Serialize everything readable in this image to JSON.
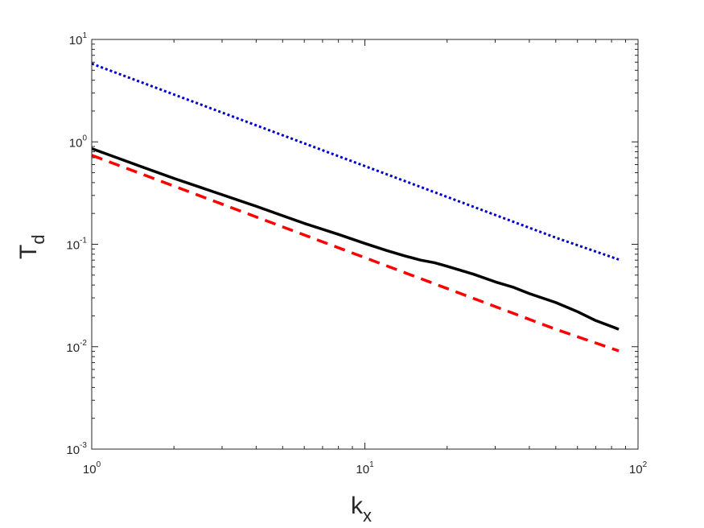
{
  "chart_data": {
    "type": "line",
    "xscale": "log",
    "yscale": "log",
    "xlim": [
      1,
      100
    ],
    "ylim": [
      0.001,
      10
    ],
    "xlabel": {
      "base": "k",
      "sub": "x"
    },
    "ylabel": {
      "base": "T",
      "sub": "d"
    },
    "grid": false,
    "legend": "none",
    "x_ticks": [
      {
        "value": 1,
        "base": "10",
        "exp": "0"
      },
      {
        "value": 10,
        "base": "10",
        "exp": "1"
      },
      {
        "value": 100,
        "base": "10",
        "exp": "2"
      }
    ],
    "y_ticks": [
      {
        "value": 0.001,
        "base": "10",
        "exp": "-3"
      },
      {
        "value": 0.01,
        "base": "10",
        "exp": "-2"
      },
      {
        "value": 0.1,
        "base": "10",
        "exp": "-1"
      },
      {
        "value": 1,
        "base": "10",
        "exp": "0"
      },
      {
        "value": 10,
        "base": "10",
        "exp": "1"
      }
    ],
    "series": [
      {
        "style": "dotted",
        "color": "#0000cc",
        "points": [
          [
            1,
            5.8
          ],
          [
            2,
            2.9
          ],
          [
            5,
            1.16
          ],
          [
            10,
            0.58
          ],
          [
            20,
            0.29
          ],
          [
            50,
            0.116
          ],
          [
            85,
            0.071
          ]
        ]
      },
      {
        "style": "solid",
        "color": "#000000",
        "points": [
          [
            1,
            0.86
          ],
          [
            1.5,
            0.58
          ],
          [
            2,
            0.44
          ],
          [
            3,
            0.305
          ],
          [
            4,
            0.235
          ],
          [
            5,
            0.19
          ],
          [
            6,
            0.16
          ],
          [
            8,
            0.125
          ],
          [
            10,
            0.102
          ],
          [
            12,
            0.087
          ],
          [
            14,
            0.077
          ],
          [
            16,
            0.07
          ],
          [
            18,
            0.066
          ],
          [
            20,
            0.061
          ],
          [
            25,
            0.051
          ],
          [
            30,
            0.043
          ],
          [
            35,
            0.038
          ],
          [
            40,
            0.033
          ],
          [
            50,
            0.027
          ],
          [
            60,
            0.022
          ],
          [
            70,
            0.018
          ],
          [
            85,
            0.0148
          ]
        ]
      },
      {
        "style": "dashed",
        "color": "#ff0000",
        "points": [
          [
            1,
            0.74
          ],
          [
            2,
            0.37
          ],
          [
            5,
            0.148
          ],
          [
            10,
            0.074
          ],
          [
            20,
            0.037
          ],
          [
            50,
            0.0148
          ],
          [
            85,
            0.0091
          ]
        ]
      }
    ]
  }
}
